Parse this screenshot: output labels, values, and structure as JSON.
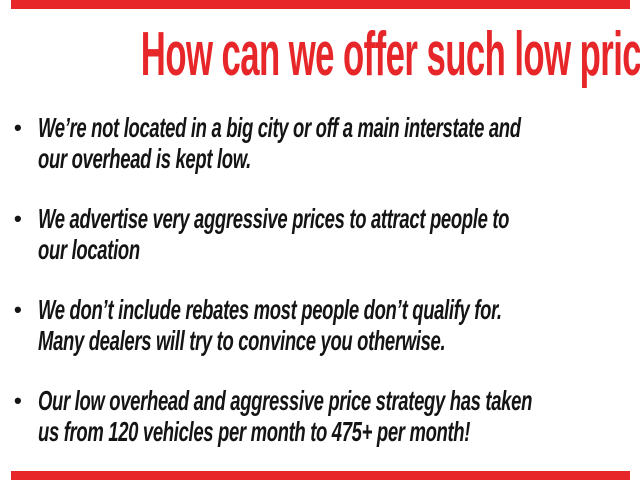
{
  "colors": {
    "accent_red": "#e62629",
    "text_black": "#141414",
    "background": "#ffffff"
  },
  "title": {
    "text": "How can we offer such low prices?"
  },
  "bullets": {
    "glyph": "•",
    "items": [
      {
        "line1": "We’re not located in a big city or off a main interstate and",
        "line2": "our overhead is kept low."
      },
      {
        "line1": "We advertise very aggressive prices to attract people to",
        "line2": "our location"
      },
      {
        "line1": "We don’t include rebates most people don’t qualify for.",
        "line2": "Many dealers will try to convince you otherwise."
      },
      {
        "line1": "Our low overhead and aggressive price strategy has taken",
        "line2": "us from 120 vehicles per month to 475+ per month!"
      }
    ]
  }
}
